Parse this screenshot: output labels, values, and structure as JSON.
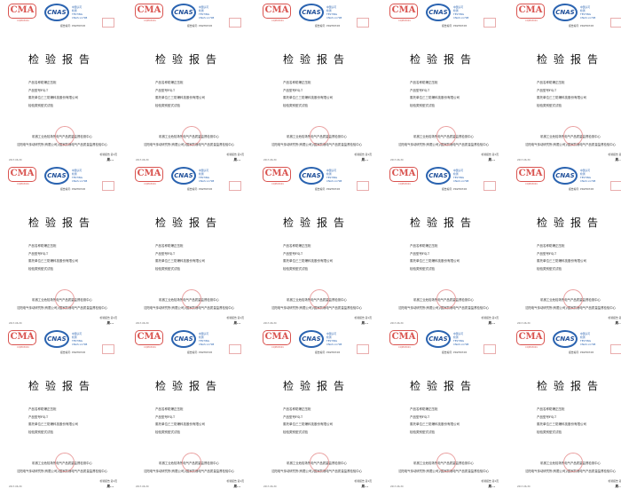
{
  "layout_grid": {
    "columns": 5,
    "rows": 3
  },
  "report": {
    "cma_logo": "CMA",
    "cma_sub": "CQM03001",
    "cnas_logo": "CNAS",
    "cnas_text": [
      "中国认可",
      "检测",
      "TESTING",
      "CNAS L1798"
    ],
    "report_no": "报告编号: PDZH0728",
    "title": "检验报告",
    "fields": [
      {
        "label": "产品名称:",
        "value": "防爆正压柜"
      },
      {
        "label": "产品型号:",
        "value": "FSJ-T"
      },
      {
        "label": "委托单位:",
        "value": "三三防爆科技股份有限公司"
      },
      {
        "label": "检验类别:",
        "value": "型式试验"
      }
    ],
    "org_line1": "机械工业危险场所电气产品质量监督检测中心",
    "org_line2": "沈阳电气传动研究所(有限公司)/国家防爆电气产品质量监督检验中心",
    "page_label": "检验报告 第1页",
    "signature": "周...",
    "date": "2017-06-30"
  },
  "colors": {
    "cma_red": "#d9534f",
    "cnas_blue": "#2a63b0"
  }
}
